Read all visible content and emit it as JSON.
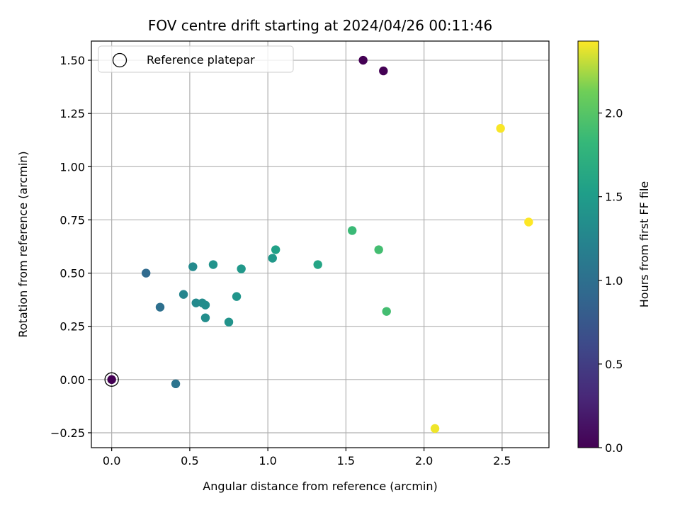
{
  "chart_data": {
    "type": "scatter",
    "title": "FOV centre drift starting at 2024/04/26 00:11:46",
    "xlabel": "Angular distance from reference (arcmin)",
    "ylabel": "Rotation from reference (arcmin)",
    "xlim": [
      -0.13,
      2.8
    ],
    "ylim": [
      -0.32,
      1.59
    ],
    "x_ticks": [
      0.0,
      0.5,
      1.0,
      1.5,
      2.0,
      2.5
    ],
    "x_tick_labels": [
      "0.0",
      "0.5",
      "1.0",
      "1.5",
      "2.0",
      "2.5"
    ],
    "y_ticks": [
      -0.25,
      0.0,
      0.25,
      0.5,
      0.75,
      1.0,
      1.25,
      1.5
    ],
    "y_tick_labels": [
      "−0.25",
      "0.00",
      "0.25",
      "0.50",
      "0.75",
      "1.00",
      "1.25",
      "1.50"
    ],
    "grid": true,
    "legend": {
      "placement": "upper-left",
      "entries": [
        {
          "label": "Reference platepar",
          "marker": "hollow-circle"
        }
      ]
    },
    "reference_point": {
      "x": 0.0,
      "y": 0.0
    },
    "colorbar": {
      "label": "Hours from first FF file",
      "colormap": "viridis",
      "range": [
        0.0,
        2.43
      ],
      "ticks": [
        0.0,
        0.5,
        1.0,
        1.5,
        2.0
      ],
      "tick_labels": [
        "0.0",
        "0.5",
        "1.0",
        "1.5",
        "2.0"
      ]
    },
    "points": [
      {
        "x": 0.0,
        "y": 0.0,
        "hours": 0.0
      },
      {
        "x": 1.61,
        "y": 1.5,
        "hours": 0.0
      },
      {
        "x": 1.74,
        "y": 1.45,
        "hours": 0.0
      },
      {
        "x": 0.22,
        "y": 0.5,
        "hours": 0.95
      },
      {
        "x": 0.31,
        "y": 0.34,
        "hours": 1.0
      },
      {
        "x": 0.41,
        "y": -0.02,
        "hours": 1.05
      },
      {
        "x": 0.46,
        "y": 0.4,
        "hours": 1.25
      },
      {
        "x": 0.52,
        "y": 0.53,
        "hours": 1.3
      },
      {
        "x": 0.54,
        "y": 0.36,
        "hours": 1.3
      },
      {
        "x": 0.58,
        "y": 0.36,
        "hours": 1.32
      },
      {
        "x": 0.6,
        "y": 0.35,
        "hours": 1.33
      },
      {
        "x": 0.6,
        "y": 0.29,
        "hours": 1.35
      },
      {
        "x": 0.65,
        "y": 0.54,
        "hours": 1.4
      },
      {
        "x": 0.75,
        "y": 0.27,
        "hours": 1.4
      },
      {
        "x": 0.8,
        "y": 0.39,
        "hours": 1.42
      },
      {
        "x": 0.83,
        "y": 0.52,
        "hours": 1.45
      },
      {
        "x": 1.03,
        "y": 0.57,
        "hours": 1.45
      },
      {
        "x": 1.05,
        "y": 0.61,
        "hours": 1.55
      },
      {
        "x": 1.32,
        "y": 0.54,
        "hours": 1.6
      },
      {
        "x": 1.54,
        "y": 0.7,
        "hours": 1.85
      },
      {
        "x": 1.71,
        "y": 0.61,
        "hours": 1.9
      },
      {
        "x": 1.76,
        "y": 0.32,
        "hours": 1.9
      },
      {
        "x": 2.07,
        "y": -0.23,
        "hours": 2.4
      },
      {
        "x": 2.49,
        "y": 1.18,
        "hours": 2.42
      },
      {
        "x": 2.67,
        "y": 0.74,
        "hours": 2.43
      }
    ]
  }
}
